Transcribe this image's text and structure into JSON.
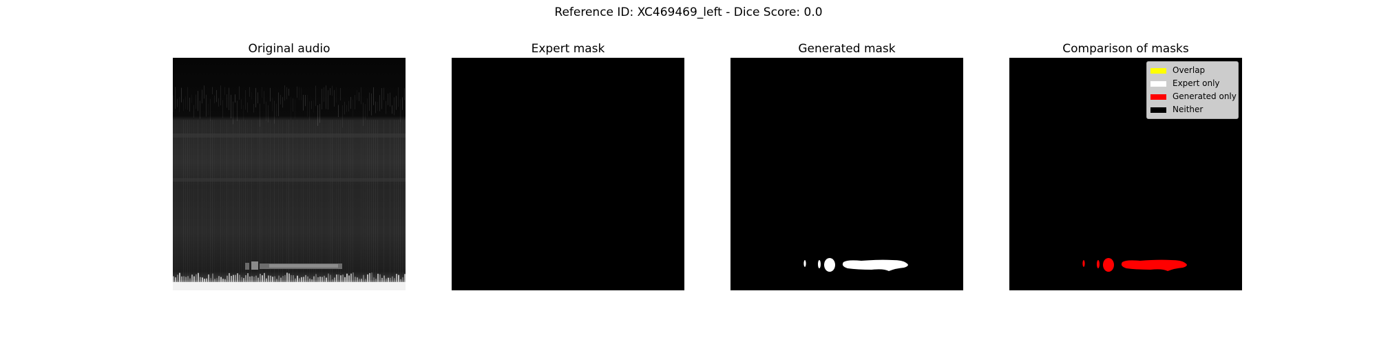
{
  "figure": {
    "title": "Reference ID: XC469469_left - Dice Score: 0.0"
  },
  "chart_data": [
    {
      "type": "heatmap",
      "title": "Original audio",
      "axes": "off",
      "colormap": "gray"
    },
    {
      "type": "heatmap",
      "title": "Expert mask",
      "axes": "off",
      "colormap": "gray",
      "mask_empty": true
    },
    {
      "type": "heatmap",
      "title": "Generated mask",
      "axes": "off",
      "colormap": "gray",
      "mask_color": "#ffffff"
    },
    {
      "type": "heatmap",
      "title": "Comparison of masks",
      "axes": "off",
      "legend_position": "top-right",
      "legend": [
        {
          "label": "Overlap",
          "color": "#ffff00"
        },
        {
          "label": "Expert only",
          "color": "#ffffff"
        },
        {
          "label": "Generated only",
          "color": "#ff0000"
        },
        {
          "label": "Neither",
          "color": "#000000"
        }
      ]
    }
  ]
}
